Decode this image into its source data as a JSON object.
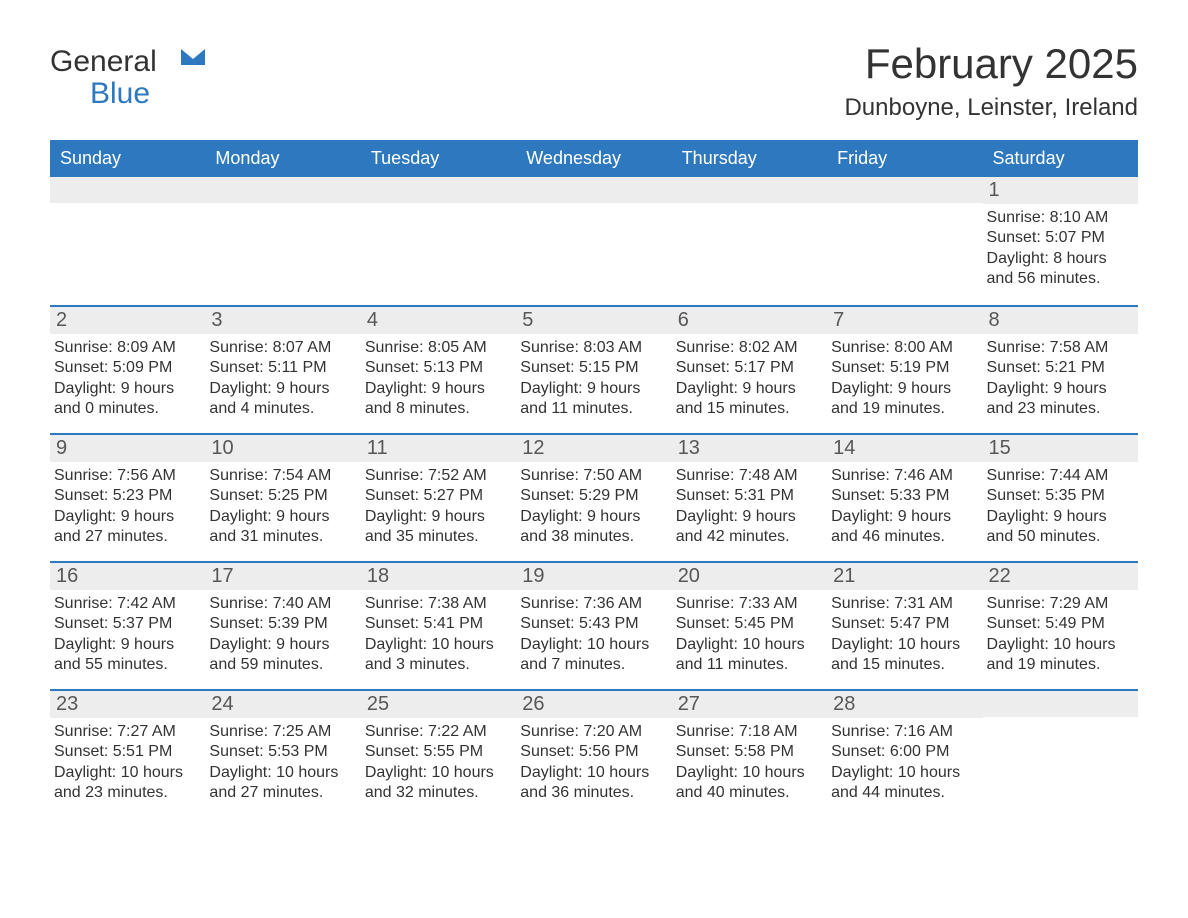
{
  "brand": {
    "part1": "General",
    "part2": "Blue",
    "icon_color": "#2d78bf"
  },
  "title": {
    "month": "February 2025",
    "location": "Dunboyne, Leinster, Ireland"
  },
  "colors": {
    "header_bg": "#2d78bf",
    "header_fg": "#ffffff",
    "band_bg": "#ededed",
    "band_fg": "#575757",
    "border": "#2d78bf",
    "text": "#333333",
    "page_bg": "#ffffff"
  },
  "day_names": [
    "Sunday",
    "Monday",
    "Tuesday",
    "Wednesday",
    "Thursday",
    "Friday",
    "Saturday"
  ],
  "weeks": [
    [
      {
        "n": "",
        "sr": "",
        "ss": "",
        "dl": ""
      },
      {
        "n": "",
        "sr": "",
        "ss": "",
        "dl": ""
      },
      {
        "n": "",
        "sr": "",
        "ss": "",
        "dl": ""
      },
      {
        "n": "",
        "sr": "",
        "ss": "",
        "dl": ""
      },
      {
        "n": "",
        "sr": "",
        "ss": "",
        "dl": ""
      },
      {
        "n": "",
        "sr": "",
        "ss": "",
        "dl": ""
      },
      {
        "n": "1",
        "sr": "Sunrise: 8:10 AM",
        "ss": "Sunset: 5:07 PM",
        "dl": "Daylight: 8 hours and 56 minutes."
      }
    ],
    [
      {
        "n": "2",
        "sr": "Sunrise: 8:09 AM",
        "ss": "Sunset: 5:09 PM",
        "dl": "Daylight: 9 hours and 0 minutes."
      },
      {
        "n": "3",
        "sr": "Sunrise: 8:07 AM",
        "ss": "Sunset: 5:11 PM",
        "dl": "Daylight: 9 hours and 4 minutes."
      },
      {
        "n": "4",
        "sr": "Sunrise: 8:05 AM",
        "ss": "Sunset: 5:13 PM",
        "dl": "Daylight: 9 hours and 8 minutes."
      },
      {
        "n": "5",
        "sr": "Sunrise: 8:03 AM",
        "ss": "Sunset: 5:15 PM",
        "dl": "Daylight: 9 hours and 11 minutes."
      },
      {
        "n": "6",
        "sr": "Sunrise: 8:02 AM",
        "ss": "Sunset: 5:17 PM",
        "dl": "Daylight: 9 hours and 15 minutes."
      },
      {
        "n": "7",
        "sr": "Sunrise: 8:00 AM",
        "ss": "Sunset: 5:19 PM",
        "dl": "Daylight: 9 hours and 19 minutes."
      },
      {
        "n": "8",
        "sr": "Sunrise: 7:58 AM",
        "ss": "Sunset: 5:21 PM",
        "dl": "Daylight: 9 hours and 23 minutes."
      }
    ],
    [
      {
        "n": "9",
        "sr": "Sunrise: 7:56 AM",
        "ss": "Sunset: 5:23 PM",
        "dl": "Daylight: 9 hours and 27 minutes."
      },
      {
        "n": "10",
        "sr": "Sunrise: 7:54 AM",
        "ss": "Sunset: 5:25 PM",
        "dl": "Daylight: 9 hours and 31 minutes."
      },
      {
        "n": "11",
        "sr": "Sunrise: 7:52 AM",
        "ss": "Sunset: 5:27 PM",
        "dl": "Daylight: 9 hours and 35 minutes."
      },
      {
        "n": "12",
        "sr": "Sunrise: 7:50 AM",
        "ss": "Sunset: 5:29 PM",
        "dl": "Daylight: 9 hours and 38 minutes."
      },
      {
        "n": "13",
        "sr": "Sunrise: 7:48 AM",
        "ss": "Sunset: 5:31 PM",
        "dl": "Daylight: 9 hours and 42 minutes."
      },
      {
        "n": "14",
        "sr": "Sunrise: 7:46 AM",
        "ss": "Sunset: 5:33 PM",
        "dl": "Daylight: 9 hours and 46 minutes."
      },
      {
        "n": "15",
        "sr": "Sunrise: 7:44 AM",
        "ss": "Sunset: 5:35 PM",
        "dl": "Daylight: 9 hours and 50 minutes."
      }
    ],
    [
      {
        "n": "16",
        "sr": "Sunrise: 7:42 AM",
        "ss": "Sunset: 5:37 PM",
        "dl": "Daylight: 9 hours and 55 minutes."
      },
      {
        "n": "17",
        "sr": "Sunrise: 7:40 AM",
        "ss": "Sunset: 5:39 PM",
        "dl": "Daylight: 9 hours and 59 minutes."
      },
      {
        "n": "18",
        "sr": "Sunrise: 7:38 AM",
        "ss": "Sunset: 5:41 PM",
        "dl": "Daylight: 10 hours and 3 minutes."
      },
      {
        "n": "19",
        "sr": "Sunrise: 7:36 AM",
        "ss": "Sunset: 5:43 PM",
        "dl": "Daylight: 10 hours and 7 minutes."
      },
      {
        "n": "20",
        "sr": "Sunrise: 7:33 AM",
        "ss": "Sunset: 5:45 PM",
        "dl": "Daylight: 10 hours and 11 minutes."
      },
      {
        "n": "21",
        "sr": "Sunrise: 7:31 AM",
        "ss": "Sunset: 5:47 PM",
        "dl": "Daylight: 10 hours and 15 minutes."
      },
      {
        "n": "22",
        "sr": "Sunrise: 7:29 AM",
        "ss": "Sunset: 5:49 PM",
        "dl": "Daylight: 10 hours and 19 minutes."
      }
    ],
    [
      {
        "n": "23",
        "sr": "Sunrise: 7:27 AM",
        "ss": "Sunset: 5:51 PM",
        "dl": "Daylight: 10 hours and 23 minutes."
      },
      {
        "n": "24",
        "sr": "Sunrise: 7:25 AM",
        "ss": "Sunset: 5:53 PM",
        "dl": "Daylight: 10 hours and 27 minutes."
      },
      {
        "n": "25",
        "sr": "Sunrise: 7:22 AM",
        "ss": "Sunset: 5:55 PM",
        "dl": "Daylight: 10 hours and 32 minutes."
      },
      {
        "n": "26",
        "sr": "Sunrise: 7:20 AM",
        "ss": "Sunset: 5:56 PM",
        "dl": "Daylight: 10 hours and 36 minutes."
      },
      {
        "n": "27",
        "sr": "Sunrise: 7:18 AM",
        "ss": "Sunset: 5:58 PM",
        "dl": "Daylight: 10 hours and 40 minutes."
      },
      {
        "n": "28",
        "sr": "Sunrise: 7:16 AM",
        "ss": "Sunset: 6:00 PM",
        "dl": "Daylight: 10 hours and 44 minutes."
      },
      {
        "n": "",
        "sr": "",
        "ss": "",
        "dl": ""
      }
    ]
  ]
}
